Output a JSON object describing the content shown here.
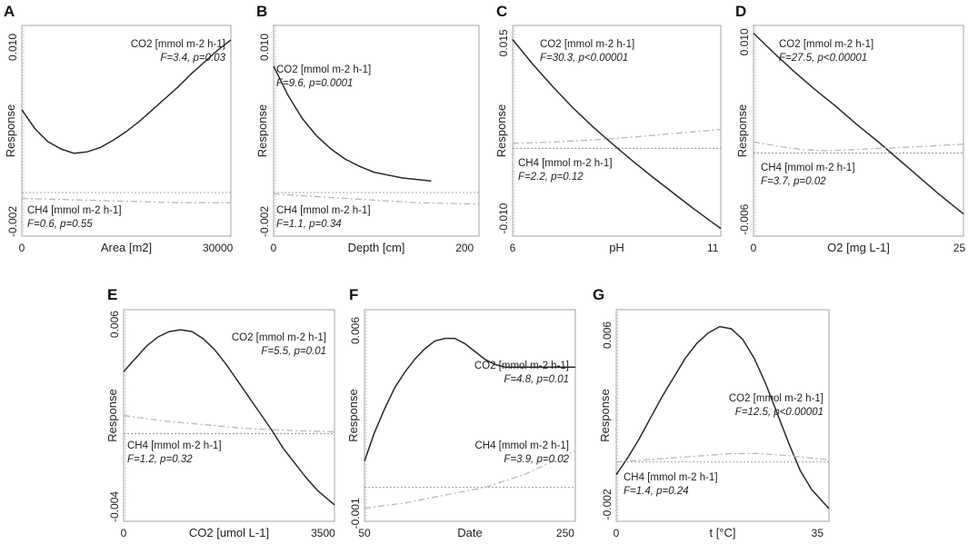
{
  "figure": {
    "y_label": "Response",
    "co2_name": "CO2 [mmol m-2 h-1]",
    "ch4_name": "CH4 [mmol m-2 h-1]"
  },
  "chart_data": [
    {
      "type": "line",
      "panel": "A",
      "xlabel": "Area [m2]",
      "ylabel": "Response",
      "xlim": [
        0,
        32000
      ],
      "ylim": [
        -0.003,
        0.0115
      ],
      "xticks": [
        "0",
        "30000"
      ],
      "yticks": [
        "-0.002",
        "0.010"
      ],
      "series": [
        {
          "name": "CO2 [mmol m-2 h-1]",
          "stat": "F=3.4, p=0.03",
          "x": [
            0,
            2000,
            4000,
            6000,
            8000,
            10000,
            12000,
            14000,
            16000,
            18000,
            20000,
            22000,
            24000,
            26000,
            28000,
            30000,
            32000
          ],
          "y": [
            0.0057,
            0.0044,
            0.0035,
            0.003,
            0.0027,
            0.0028,
            0.0031,
            0.0036,
            0.0042,
            0.0049,
            0.0057,
            0.0065,
            0.0073,
            0.0082,
            0.009,
            0.0098,
            0.0105
          ]
        },
        {
          "name": "CH4 [mmol m-2 h-1]",
          "stat": "F=0.6, p=0.55",
          "x": [
            0,
            8000,
            16000,
            24000,
            32000
          ],
          "y": [
            -0.0004,
            -0.0005,
            -0.0006,
            -0.0007,
            -0.0007
          ]
        }
      ]
    },
    {
      "type": "line",
      "panel": "B",
      "xlabel": "Depth [cm]",
      "ylabel": "Response",
      "xlim": [
        0,
        215
      ],
      "ylim": [
        -0.003,
        0.0115
      ],
      "xticks": [
        "0",
        "200"
      ],
      "yticks": [
        "-0.002",
        "0.010"
      ],
      "series": [
        {
          "name": "CO2 [mmol m-2 h-1]",
          "stat": "F=9.6, p=0.0001",
          "x": [
            0,
            15,
            30,
            45,
            60,
            75,
            90,
            105,
            120,
            135,
            150,
            165
          ],
          "y": [
            0.0087,
            0.0067,
            0.0051,
            0.0039,
            0.003,
            0.0023,
            0.0018,
            0.0014,
            0.0012,
            0.001,
            0.0009,
            0.0008
          ]
        },
        {
          "name": "CH4 [mmol m-2 h-1]",
          "stat": "F=1.1, p=0.34",
          "x": [
            0,
            50,
            100,
            150,
            215
          ],
          "y": [
            -0.0001,
            -0.0003,
            -0.0005,
            -0.0007,
            -0.0008
          ]
        }
      ]
    },
    {
      "type": "line",
      "panel": "C",
      "xlabel": "pH",
      "ylabel": "Response",
      "xlim": [
        6,
        11.2
      ],
      "ylim": [
        -0.0125,
        0.0175
      ],
      "xticks": [
        "6",
        "11"
      ],
      "yticks": [
        "-0.010",
        "0.015"
      ],
      "series": [
        {
          "name": "CO2 [mmol m-2 h-1]",
          "stat": "F=30.3, p<0.00001",
          "x": [
            6.0,
            6.5,
            7.0,
            7.5,
            8.0,
            8.5,
            9.0,
            9.5,
            10.0,
            10.5,
            11.0,
            11.2
          ],
          "y": [
            0.0155,
            0.012,
            0.0088,
            0.0058,
            0.0031,
            0.0006,
            -0.0018,
            -0.0041,
            -0.0063,
            -0.0085,
            -0.0106,
            -0.0114
          ]
        },
        {
          "name": "CH4 [mmol m-2 h-1]",
          "stat": "F=2.2, p=0.12",
          "x": [
            6,
            7,
            8,
            9,
            10,
            11.2
          ],
          "y": [
            0.0007,
            0.0009,
            0.0012,
            0.0016,
            0.0021,
            0.0027
          ]
        }
      ]
    },
    {
      "type": "line",
      "panel": "D",
      "xlabel": "O2 [mg L-1]",
      "ylabel": "Response",
      "xlim": [
        0,
        25.5
      ],
      "ylim": [
        -0.0075,
        0.0115
      ],
      "xticks": [
        "0",
        "25"
      ],
      "yticks": [
        "-0.006",
        "0.010"
      ],
      "series": [
        {
          "name": "CO2 [mmol m-2 h-1]",
          "stat": "F=27.5, p<0.00001",
          "x": [
            0,
            2.5,
            5,
            7.5,
            10,
            12.5,
            15,
            17.5,
            20,
            22.5,
            25.5
          ],
          "y": [
            0.0108,
            0.009,
            0.0073,
            0.0057,
            0.0042,
            0.0026,
            0.0011,
            -0.0005,
            -0.0021,
            -0.0037,
            -0.0055
          ]
        },
        {
          "name": "CH4 [mmol m-2 h-1]",
          "stat": "F=3.7, p=0.02",
          "x": [
            0,
            3,
            6,
            9,
            12,
            15,
            18,
            21,
            25.5
          ],
          "y": [
            0.001,
            0.0006,
            0.0003,
            0.0002,
            0.0003,
            0.0004,
            0.0005,
            0.0006,
            0.0008
          ]
        }
      ]
    },
    {
      "type": "line",
      "panel": "E",
      "xlabel": "CO2 [umol L-1]",
      "ylabel": "Response",
      "xlim": [
        0,
        3700
      ],
      "ylim": [
        -0.0048,
        0.0068
      ],
      "xticks": [
        "0",
        "3500"
      ],
      "yticks": [
        "-0.004",
        "0.006"
      ],
      "series": [
        {
          "name": "CO2 [mmol m-2 h-1]",
          "stat": "F=5.5, p=0.01",
          "x": [
            0,
            200,
            400,
            600,
            800,
            1000,
            1200,
            1400,
            1600,
            1800,
            2000,
            2200,
            2400,
            2600,
            2800,
            3000,
            3200,
            3400,
            3700
          ],
          "y": [
            0.0034,
            0.0041,
            0.0048,
            0.0053,
            0.0056,
            0.0057,
            0.0056,
            0.0052,
            0.0046,
            0.0038,
            0.0029,
            0.002,
            0.0011,
            0.0002,
            -0.0008,
            -0.0016,
            -0.0024,
            -0.0031,
            -0.0039
          ]
        },
        {
          "name": "CH4 [mmol m-2 h-1]",
          "stat": "F=1.2, p=0.32",
          "x": [
            0,
            700,
            1400,
            2100,
            2800,
            3700
          ],
          "y": [
            0.001,
            0.0007,
            0.0005,
            0.0003,
            0.0002,
            0.0001
          ]
        }
      ]
    },
    {
      "type": "line",
      "panel": "F",
      "xlabel": "Date",
      "ylabel": "Response",
      "xlim": [
        50,
        260
      ],
      "ylim": [
        -0.0013,
        0.0068
      ],
      "xticks": [
        "50",
        "250"
      ],
      "yticks": [
        "-0.001",
        "0.006"
      ],
      "series": [
        {
          "name": "CO2 [mmol m-2 h-1]",
          "stat": "F=4.8, p=0.01",
          "x": [
            50,
            60,
            70,
            80,
            90,
            100,
            110,
            120,
            130,
            140,
            150,
            160,
            170,
            180,
            190,
            200,
            210,
            220,
            230,
            240,
            250,
            260
          ],
          "y": [
            0.001,
            0.0021,
            0.003,
            0.0038,
            0.0044,
            0.0049,
            0.0053,
            0.0056,
            0.0057,
            0.0057,
            0.0055,
            0.0052,
            0.0049,
            0.0047,
            0.0046,
            0.0046,
            0.0046,
            0.0046,
            0.0046,
            0.0046,
            0.0046,
            0.0046
          ]
        },
        {
          "name": "CH4 [mmol m-2 h-1]",
          "stat": "F=3.9, p=0.02",
          "x": [
            50,
            90,
            130,
            170,
            210,
            260
          ],
          "y": [
            -0.0008,
            -0.0006,
            -0.0003,
            0.0,
            0.0005,
            0.0014
          ]
        }
      ]
    },
    {
      "type": "line",
      "panel": "G",
      "xlabel": "t [°C]",
      "ylabel": "Response",
      "xlim": [
        0,
        37
      ],
      "ylim": [
        -0.0028,
        0.0072
      ],
      "xticks": [
        "0",
        "35"
      ],
      "yticks": [
        "-0.002",
        "0.006"
      ],
      "series": [
        {
          "name": "CO2 [mmol m-2 h-1]",
          "stat": "F=12.5, p<0.00001",
          "x": [
            0,
            2,
            4,
            6,
            8,
            10,
            12,
            14,
            16,
            18,
            20,
            22,
            24,
            26,
            28,
            30,
            32,
            34,
            37
          ],
          "y": [
            -0.0006,
            0.0002,
            0.0011,
            0.0021,
            0.0031,
            0.004,
            0.0049,
            0.0056,
            0.0061,
            0.0064,
            0.0063,
            0.0058,
            0.0049,
            0.0037,
            0.0023,
            0.0009,
            -0.0004,
            -0.0013,
            -0.0022
          ]
        },
        {
          "name": "CH4 [mmol m-2 h-1]",
          "stat": "F=1.4, p=0.24",
          "x": [
            0,
            5,
            10,
            15,
            20,
            25,
            30,
            37
          ],
          "y": [
            0.0,
            0.0001,
            0.0002,
            0.0003,
            0.0004,
            0.0004,
            0.0003,
            0.0001
          ]
        }
      ]
    }
  ]
}
